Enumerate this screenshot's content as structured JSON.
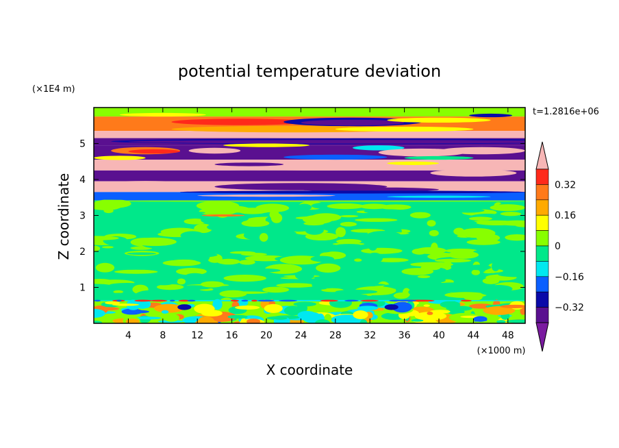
{
  "chart_data": {
    "type": "heatmap",
    "title": "potential temperature deviation",
    "time_label": "t=1.2816e+06",
    "xlabel": "X coordinate",
    "ylabel": "Z coordinate",
    "x_unit": "(×1000 m)",
    "y_unit": "(×1E4 m)",
    "xlim": [
      0,
      50
    ],
    "ylim": [
      0,
      6
    ],
    "x_ticks": [
      4,
      8,
      12,
      16,
      20,
      24,
      28,
      32,
      36,
      40,
      44,
      48
    ],
    "y_ticks": [
      1,
      2,
      3,
      4,
      5
    ],
    "colorbar": {
      "labeled_levels": [
        0.32,
        0.16,
        0,
        -0.16,
        -0.32
      ],
      "labels": [
        "0.32",
        "0.16",
        "0",
        "−0.16",
        "−0.32"
      ],
      "bins": [
        {
          "color": "#ff2a1a",
          "range": [
            0.32,
            0.4
          ]
        },
        {
          "color": "#ff7a1a",
          "range": [
            0.24,
            0.32
          ]
        },
        {
          "color": "#ffaa00",
          "range": [
            0.16,
            0.24
          ]
        },
        {
          "color": "#ffff00",
          "range": [
            0.08,
            0.16
          ]
        },
        {
          "color": "#88ff00",
          "range": [
            0.0,
            0.08
          ]
        },
        {
          "color": "#00e88a",
          "range": [
            -0.08,
            0.0
          ]
        },
        {
          "color": "#00e8f0",
          "range": [
            -0.16,
            -0.08
          ]
        },
        {
          "color": "#0a5fff",
          "range": [
            -0.24,
            -0.16
          ]
        },
        {
          "color": "#0a0aa8",
          "range": [
            -0.32,
            -0.24
          ]
        },
        {
          "color": "#5a1090",
          "range": [
            -0.4,
            -0.32
          ]
        }
      ],
      "over_color": "#f7b6b6",
      "under_color": "#7a1aa0"
    },
    "bands": [
      {
        "z": [
          5.75,
          6.0
        ],
        "dominant": "#88ff00"
      },
      {
        "z": [
          5.35,
          5.75
        ],
        "dominant": "#ff7a1a"
      },
      {
        "z": [
          5.15,
          5.35
        ],
        "dominant": "#f7b6b6"
      },
      {
        "z": [
          4.95,
          5.15
        ],
        "dominant": "#5a1090"
      },
      {
        "z": [
          4.55,
          4.95
        ],
        "dominant": "#5a1090"
      },
      {
        "z": [
          4.25,
          4.55
        ],
        "dominant": "#f7b6b6"
      },
      {
        "z": [
          3.95,
          4.25
        ],
        "dominant": "#5a1090"
      },
      {
        "z": [
          3.65,
          3.95
        ],
        "dominant": "#f7b6b6"
      },
      {
        "z": [
          3.42,
          3.65
        ],
        "dominant": "#0a5fff"
      },
      {
        "z": [
          0.62,
          3.42
        ],
        "dominant": "#00e88a"
      },
      {
        "z": [
          0.0,
          0.62
        ],
        "dominant": "#88ff00"
      }
    ]
  }
}
